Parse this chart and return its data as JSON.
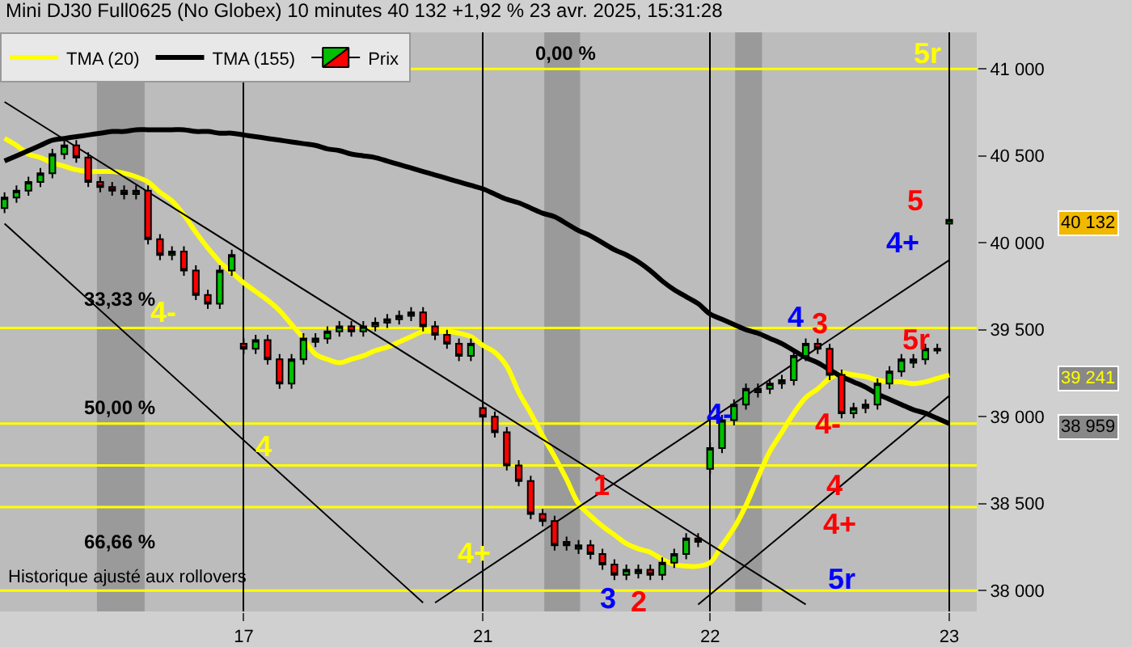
{
  "chart_data": {
    "type": "candlestick",
    "title": "Mini DJ30 Full0625 (No Globex) 10 minutes 40 132 +1,92 % 23 avr. 2025, 15:31:28",
    "categories": [
      null,
      null,
      null,
      null,
      null,
      null,
      null,
      null,
      null,
      null,
      null,
      null,
      null,
      null,
      null,
      null,
      null,
      null,
      null,
      null,
      "17",
      null,
      null,
      null,
      null,
      null,
      null,
      null,
      null,
      null,
      null,
      null,
      null,
      null,
      null,
      null,
      null,
      null,
      null,
      null,
      "21",
      null,
      null,
      null,
      null,
      null,
      null,
      null,
      null,
      null,
      null,
      null,
      null,
      null,
      null,
      null,
      null,
      null,
      null,
      "22",
      null,
      null,
      null,
      null,
      null,
      null,
      null,
      null,
      null,
      null,
      null,
      null,
      null,
      null,
      null,
      null,
      null,
      null,
      null,
      "23"
    ],
    "series": [
      {
        "name": "Prix",
        "ohlc": [
          [
            40200,
            40290,
            40170,
            40260
          ],
          [
            40260,
            40330,
            40230,
            40300
          ],
          [
            40300,
            40380,
            40270,
            40350
          ],
          [
            40350,
            40430,
            40320,
            40400
          ],
          [
            40400,
            40540,
            40370,
            40510
          ],
          [
            40510,
            40590,
            40480,
            40560
          ],
          [
            40560,
            40590,
            40460,
            40490
          ],
          [
            40490,
            40520,
            40320,
            40350
          ],
          [
            40350,
            40380,
            40290,
            40320
          ],
          [
            40320,
            40350,
            40270,
            40300
          ],
          [
            40300,
            40330,
            40250,
            40280
          ],
          [
            40280,
            40330,
            40250,
            40300
          ],
          [
            40300,
            40330,
            39990,
            40020
          ],
          [
            40020,
            40050,
            39900,
            39930
          ],
          [
            39930,
            39980,
            39900,
            39950
          ],
          [
            39950,
            39980,
            39810,
            39840
          ],
          [
            39840,
            39870,
            39670,
            39700
          ],
          [
            39700,
            39730,
            39620,
            39650
          ],
          [
            39650,
            39870,
            39620,
            39840
          ],
          [
            39840,
            39960,
            39810,
            39930
          ],
          [
            39420,
            39450,
            39360,
            39390
          ],
          [
            39390,
            39470,
            39360,
            39440
          ],
          [
            39440,
            39470,
            39300,
            39330
          ],
          [
            39330,
            39360,
            39160,
            39190
          ],
          [
            39190,
            39360,
            39160,
            39330
          ],
          [
            39330,
            39480,
            39300,
            39450
          ],
          [
            39430,
            39480,
            39400,
            39450
          ],
          [
            39450,
            39520,
            39420,
            39490
          ],
          [
            39490,
            39550,
            39460,
            39520
          ],
          [
            39520,
            39550,
            39460,
            39490
          ],
          [
            39490,
            39550,
            39460,
            39520
          ],
          [
            39520,
            39570,
            39490,
            39540
          ],
          [
            39540,
            39590,
            39510,
            39560
          ],
          [
            39560,
            39610,
            39530,
            39580
          ],
          [
            39580,
            39630,
            39550,
            39600
          ],
          [
            39600,
            39630,
            39490,
            39520
          ],
          [
            39520,
            39550,
            39440,
            39470
          ],
          [
            39470,
            39500,
            39390,
            39420
          ],
          [
            39420,
            39450,
            39320,
            39350
          ],
          [
            39350,
            39450,
            39320,
            39420
          ],
          [
            39050,
            39080,
            38970,
            39000
          ],
          [
            39000,
            39030,
            38880,
            38910
          ],
          [
            38910,
            38940,
            38690,
            38720
          ],
          [
            38720,
            38750,
            38600,
            38630
          ],
          [
            38630,
            38660,
            38410,
            38440
          ],
          [
            38440,
            38470,
            38370,
            38400
          ],
          [
            38400,
            38430,
            38230,
            38260
          ],
          [
            38280,
            38310,
            38230,
            38260
          ],
          [
            38240,
            38290,
            38210,
            38260
          ],
          [
            38260,
            38290,
            38180,
            38210
          ],
          [
            38210,
            38240,
            38120,
            38150
          ],
          [
            38150,
            38180,
            38060,
            38090
          ],
          [
            38090,
            38150,
            38060,
            38120
          ],
          [
            38100,
            38150,
            38070,
            38120
          ],
          [
            38120,
            38150,
            38060,
            38090
          ],
          [
            38090,
            38190,
            38060,
            38160
          ],
          [
            38160,
            38240,
            38130,
            38210
          ],
          [
            38210,
            38330,
            38180,
            38300
          ],
          [
            38300,
            38330,
            38250,
            38280
          ],
          [
            38700,
            38850,
            38670,
            38820
          ],
          [
            38820,
            39010,
            38790,
            38980
          ],
          [
            38980,
            39100,
            38950,
            39070
          ],
          [
            39070,
            39190,
            39040,
            39160
          ],
          [
            39140,
            39190,
            39110,
            39160
          ],
          [
            39160,
            39220,
            39130,
            39190
          ],
          [
            39190,
            39240,
            39160,
            39210
          ],
          [
            39210,
            39380,
            39180,
            39350
          ],
          [
            39350,
            39450,
            39320,
            39420
          ],
          [
            39420,
            39450,
            39360,
            39390
          ],
          [
            39390,
            39420,
            39210,
            39240
          ],
          [
            39240,
            39270,
            38990,
            39020
          ],
          [
            39020,
            39080,
            38990,
            39050
          ],
          [
            39050,
            39100,
            39020,
            39070
          ],
          [
            39070,
            39220,
            39040,
            39190
          ],
          [
            39190,
            39290,
            39160,
            39260
          ],
          [
            39260,
            39360,
            39230,
            39330
          ],
          [
            39310,
            39360,
            39280,
            39330
          ],
          [
            39330,
            39420,
            39300,
            39390
          ],
          [
            39380,
            39420,
            39360,
            39390
          ],
          [
            40110,
            40150,
            40100,
            40132
          ]
        ]
      },
      {
        "type": "line",
        "name": "TMA (20)",
        "color": "#ffff00",
        "values": [
          40600,
          40560,
          40510,
          40490,
          40460,
          40440,
          40420,
          40410,
          40410,
          40410,
          40400,
          40380,
          40350,
          40290,
          40240,
          40160,
          40060,
          39970,
          39890,
          39830,
          39770,
          39720,
          39670,
          39610,
          39530,
          39450,
          39360,
          39330,
          39310,
          39330,
          39350,
          39380,
          39400,
          39430,
          39460,
          39490,
          39490,
          39490,
          39480,
          39460,
          39410,
          39370,
          39290,
          39140,
          39020,
          38890,
          38770,
          38640,
          38500,
          38430,
          38370,
          38320,
          38270,
          38240,
          38220,
          38180,
          38150,
          38140,
          38140,
          38160,
          38260,
          38360,
          38490,
          38650,
          38800,
          38910,
          39020,
          39110,
          39160,
          39220,
          39250,
          39240,
          39230,
          39210,
          39200,
          39200,
          39190,
          39200,
          39220,
          39240
        ]
      },
      {
        "type": "line",
        "name": "TMA (155)",
        "color": "#000000",
        "values": [
          40470,
          40500,
          40530,
          40560,
          40590,
          40600,
          40610,
          40620,
          40630,
          40640,
          40640,
          40650,
          40650,
          40650,
          40650,
          40650,
          40640,
          40640,
          40630,
          40630,
          40620,
          40610,
          40600,
          40590,
          40580,
          40570,
          40560,
          40540,
          40530,
          40510,
          40500,
          40490,
          40470,
          40450,
          40430,
          40410,
          40390,
          40370,
          40350,
          40330,
          40310,
          40280,
          40250,
          40230,
          40200,
          40170,
          40150,
          40110,
          40070,
          40040,
          40000,
          39960,
          39930,
          39890,
          39840,
          39780,
          39730,
          39690,
          39650,
          39590,
          39560,
          39530,
          39500,
          39480,
          39450,
          39420,
          39380,
          39340,
          39310,
          39270,
          39230,
          39200,
          39170,
          39130,
          39100,
          39070,
          39040,
          39020,
          38990,
          38960
        ]
      },
      {
        "type": "line",
        "color": "#000000",
        "values": [
          40810,
          null,
          null,
          null,
          null,
          null,
          null,
          null,
          null,
          null,
          null,
          null,
          null,
          null,
          null,
          null,
          null,
          null,
          null,
          null,
          null,
          null,
          null,
          null,
          null,
          null,
          null,
          null,
          null,
          null,
          null,
          null,
          null,
          null,
          null,
          null,
          null,
          null,
          null,
          null,
          null,
          null,
          null,
          null,
          null,
          null,
          null,
          null,
          null,
          null,
          null,
          null,
          null,
          null,
          null,
          null,
          null,
          null,
          null,
          null,
          null,
          null,
          null,
          null,
          null,
          null,
          null,
          37920,
          null,
          null,
          null,
          null,
          null,
          null,
          null,
          null,
          null,
          null,
          null,
          null
        ]
      },
      {
        "type": "line",
        "color": "#000000",
        "values": [
          40110,
          null,
          null,
          null,
          null,
          null,
          null,
          null,
          null,
          null,
          null,
          null,
          null,
          null,
          null,
          null,
          null,
          null,
          null,
          null,
          null,
          null,
          null,
          null,
          null,
          null,
          null,
          null,
          null,
          null,
          null,
          null,
          null,
          null,
          null,
          37930,
          null,
          null,
          null,
          null,
          null,
          null,
          null,
          null,
          null,
          null,
          null,
          null,
          null,
          null,
          null,
          null,
          null,
          null,
          null,
          null,
          null,
          null,
          null,
          null,
          null,
          null,
          null,
          null,
          null,
          null,
          null,
          null,
          null,
          null,
          null,
          null,
          null,
          null,
          null,
          null,
          null,
          null,
          null,
          null
        ]
      },
      {
        "type": "line",
        "color": "#000000",
        "values": [
          null,
          null,
          null,
          null,
          null,
          null,
          null,
          null,
          null,
          null,
          null,
          null,
          null,
          null,
          null,
          null,
          null,
          null,
          null,
          null,
          null,
          null,
          null,
          null,
          null,
          null,
          null,
          null,
          null,
          null,
          null,
          null,
          null,
          null,
          null,
          null,
          37930,
          null,
          null,
          null,
          null,
          null,
          null,
          null,
          null,
          null,
          null,
          null,
          null,
          null,
          null,
          null,
          null,
          null,
          null,
          null,
          null,
          null,
          null,
          null,
          null,
          null,
          null,
          null,
          null,
          null,
          null,
          null,
          null,
          null,
          null,
          null,
          null,
          null,
          null,
          null,
          null,
          null,
          null,
          39900
        ]
      },
      {
        "type": "line",
        "color": "#000000",
        "values": [
          null,
          null,
          null,
          null,
          null,
          null,
          null,
          null,
          null,
          null,
          null,
          null,
          null,
          null,
          null,
          null,
          null,
          null,
          null,
          null,
          null,
          null,
          null,
          null,
          null,
          null,
          null,
          null,
          null,
          null,
          null,
          null,
          null,
          null,
          null,
          null,
          null,
          null,
          null,
          null,
          null,
          null,
          null,
          null,
          null,
          null,
          null,
          null,
          null,
          null,
          null,
          null,
          null,
          null,
          null,
          null,
          null,
          null,
          37920,
          null,
          null,
          null,
          null,
          null,
          null,
          null,
          null,
          null,
          null,
          null,
          null,
          null,
          null,
          null,
          null,
          null,
          null,
          null,
          null,
          39120
        ]
      }
    ],
    "ylim": [
      37880,
      41210
    ],
    "yticks": [
      {
        "value": 38000,
        "label": "38 000"
      },
      {
        "value": 38500,
        "label": "38 500"
      },
      {
        "value": 39000,
        "label": "39 000"
      },
      {
        "value": 39500,
        "label": "39 500"
      },
      {
        "value": 40000,
        "label": "40 000"
      },
      {
        "value": 40500,
        "label": "40 500"
      },
      {
        "value": 41000,
        "label": "41 000"
      }
    ],
    "grid": "x",
    "legend": "top left",
    "ref_lines": [
      {
        "axis": "y",
        "value": 41000,
        "color": "#ffff00"
      },
      {
        "axis": "y",
        "value": 39510,
        "color": "#ffff00"
      },
      {
        "axis": "y",
        "value": 38960,
        "color": "#ffff00"
      },
      {
        "axis": "y",
        "value": 38720,
        "color": "#ffff00"
      },
      {
        "axis": "y",
        "value": 38480,
        "color": "#ffff00"
      },
      {
        "axis": "y",
        "value": 38000,
        "color": "#ffff00"
      }
    ],
    "annotations": [
      "0,00 %",
      "33,33 %",
      "50,00 %",
      "66,66 %",
      "5r",
      "4-",
      "4",
      "4+",
      "1",
      "3",
      "2",
      "4-",
      "4",
      "3",
      "4-",
      "4",
      "4+",
      "5r",
      "5r",
      "5",
      "4+",
      "40 132",
      "39 241",
      "38 959",
      "Historique ajusté aux rollovers"
    ]
  }
}
